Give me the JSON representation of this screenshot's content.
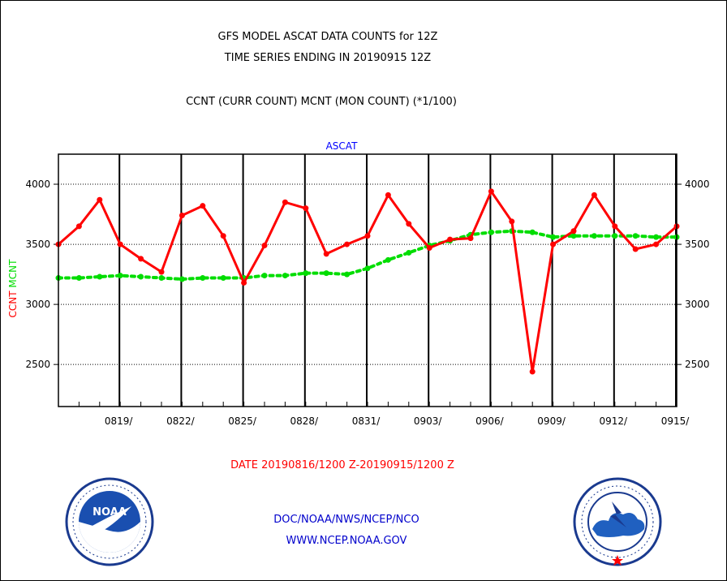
{
  "header": {
    "title_line1": "GFS MODEL ASCAT DATA COUNTS for 12Z",
    "title_line2": "TIME SERIES ENDING IN 20190915 12Z",
    "subtitle": "CCNT (CURR COUNT) MCNT (MON COUNT) (*1/100)"
  },
  "footer": {
    "date_range": "DATE 20190816/1200 Z-20190915/1200 Z",
    "org_line": "DOC/NOAA/NWS/NCEP/NCO",
    "url": "WWW.NCEP.NOAA.GOV"
  },
  "logos": {
    "noaa_icon": "noaa-logo-icon",
    "noaa_text": "NOAA",
    "nws_icon": "nws-logo-icon"
  },
  "colors": {
    "ccnt": "#ff0000",
    "mcnt": "#00dd00",
    "panel_label": "#0000ff",
    "footer_text": "#0000cc",
    "date_text": "#ff0000"
  },
  "chart_data": {
    "type": "line",
    "title": "ASCAT",
    "ylabel_parts": [
      {
        "text": "CCNT",
        "color": "#ff0000"
      },
      {
        "text": "MCNT",
        "color": "#00dd00"
      }
    ],
    "ylim": [
      2150,
      4250
    ],
    "yticks": [
      2500,
      3000,
      3500,
      4000
    ],
    "yticklabels": [
      "2500",
      "3000",
      "3500",
      "4000"
    ],
    "xlim": [
      0,
      30
    ],
    "xtick_positions": [
      3,
      6,
      9,
      12,
      15,
      18,
      21,
      24,
      27,
      30
    ],
    "xticklabels": [
      "0819/",
      "0822/",
      "0825/",
      "0828/",
      "0831/",
      "0903/",
      "0906/",
      "0909/",
      "0912/",
      "0915/"
    ],
    "grid": true,
    "x": [
      0,
      1,
      2,
      3,
      4,
      5,
      6,
      7,
      8,
      9,
      10,
      11,
      12,
      13,
      14,
      15,
      16,
      17,
      18,
      19,
      20,
      21,
      22,
      23,
      24,
      25,
      26,
      27,
      28,
      29,
      30
    ],
    "series": [
      {
        "name": "CCNT",
        "color": "#ff0000",
        "values": [
          3500,
          3650,
          3870,
          3500,
          3380,
          3270,
          3740,
          3820,
          3570,
          3180,
          3490,
          3850,
          3800,
          3420,
          3500,
          3570,
          3910,
          3670,
          3470,
          3540,
          3550,
          3940,
          3690,
          2440,
          3500,
          3610,
          3910,
          3650,
          3460,
          3500,
          3650
        ]
      },
      {
        "name": "MCNT",
        "color": "#00dd00",
        "values": [
          3220,
          3220,
          3230,
          3240,
          3230,
          3220,
          3210,
          3220,
          3220,
          3220,
          3240,
          3240,
          3260,
          3260,
          3250,
          3300,
          3370,
          3430,
          3490,
          3530,
          3580,
          3600,
          3610,
          3600,
          3560,
          3570,
          3570,
          3570,
          3570,
          3560,
          3560
        ]
      }
    ]
  }
}
